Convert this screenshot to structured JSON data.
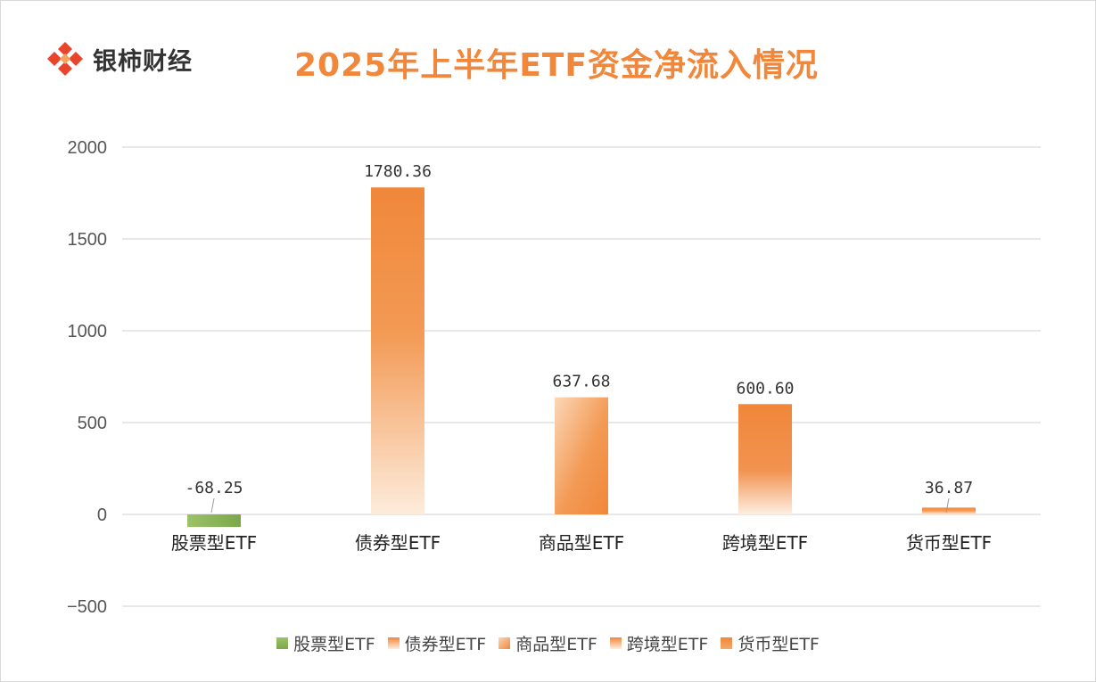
{
  "brand": {
    "name": "银柿财经"
  },
  "chart_data": {
    "type": "bar",
    "title": "2025年上半年ETF资金净流入情况",
    "categories": [
      "股票型ETF",
      "债券型ETF",
      "商品型ETF",
      "跨境型ETF",
      "货币型ETF"
    ],
    "values": [
      -68.25,
      1780.36,
      637.68,
      600.6,
      36.87
    ],
    "value_labels": [
      "-68.25",
      "1780.36",
      "637.68",
      "600.60",
      "36.87"
    ],
    "ylim": [
      -500,
      2000
    ],
    "yticks": [
      "2000",
      "1500",
      "1000",
      "500",
      "0",
      "-500"
    ],
    "grid": true,
    "legend_position": "bottom",
    "legend": [
      "股票型ETF",
      "债券型ETF",
      "商品型ETF",
      "跨境型ETF",
      "货币型ETF"
    ],
    "colors": {
      "negative_bar": "#8CB35A",
      "positive_bar": "#F0873A",
      "positive_light": "#FCE3CC",
      "title": "#F0873A",
      "grid": "#d9d9d9"
    }
  }
}
